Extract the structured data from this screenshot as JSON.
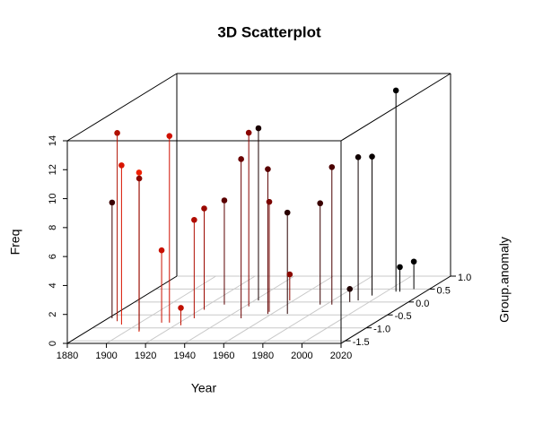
{
  "chart_data": {
    "type": "scatter3d",
    "title": "3D Scatterplot",
    "x_label": "Year",
    "y_label": "Group.anomaly",
    "z_label": "Freq",
    "x": [
      1882,
      1887,
      1892,
      1907,
      1906,
      1915,
      1911,
      1923,
      1924,
      1922,
      1928,
      1948,
      1942,
      1942,
      1958,
      1957,
      1968,
      1958,
      1977,
      1983,
      1990,
      1993,
      1996,
      2005,
      2007,
      2012
    ],
    "y": [
      -0.63,
      -0.74,
      -0.87,
      -1.15,
      -1.1,
      -0.8,
      -0.8,
      -0.9,
      -0.63,
      -0.3,
      -0.1,
      -0.63,
      -0.17,
      0.06,
      -0.46,
      -0.38,
      -0.46,
      0.06,
      -0.1,
      -0.1,
      0,
      0.06,
      0.25,
      0.4,
      0.4,
      0.5
    ],
    "z": [
      8,
      13,
      11,
      11,
      10.5,
      12.9,
      5,
      1.2,
      6.8,
      7,
      7.2,
      11,
      12,
      11.9,
      10,
      7.6,
      7,
      1.8,
      7,
      9.5,
      0.9,
      9.9,
      9.6,
      13.9,
      1.7,
      1.9
    ],
    "colors": [
      "#3a0000",
      "#b01000",
      "#d81400",
      "#f02000",
      "#8a0800",
      "#d01000",
      "#c81000",
      "#c01000",
      "#b00c00",
      "#9a0800",
      "#5a0000",
      "#6a0000",
      "#8a0400",
      "#1a0000",
      "#5a0000",
      "#7a0400",
      "#2a0000",
      "#8a0800",
      "#3a0000",
      "#4a0000",
      "#200000",
      "#100000",
      "#080000",
      "#000000",
      "#000000",
      "#000000"
    ],
    "xlim": [
      1880,
      2020
    ],
    "ylim": [
      -1.6,
      1.0
    ],
    "zlim": [
      0,
      14
    ],
    "xticks": [
      1880,
      1900,
      1920,
      1940,
      1960,
      1980,
      2000,
      2020
    ],
    "yticks": [
      -1.5,
      {
        "value": -1.0,
        "label": "-1.0"
      },
      -0.5,
      {
        "value": 0.0,
        "label": "0.0"
      },
      0.5,
      {
        "value": 1.0,
        "label": "1.0"
      }
    ],
    "zticks": [
      0,
      2,
      4,
      6,
      8,
      10,
      12,
      14
    ],
    "grid": true
  }
}
